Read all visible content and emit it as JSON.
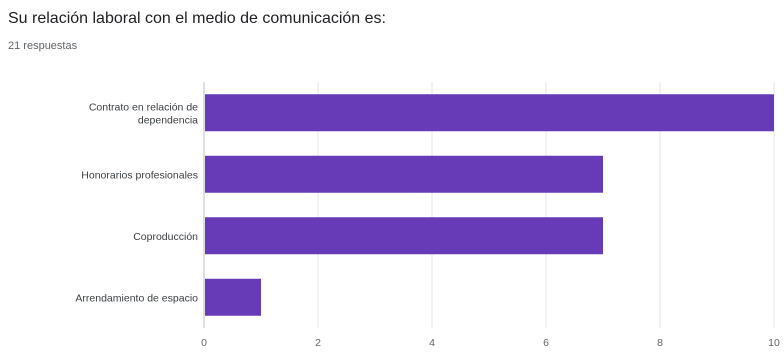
{
  "title": "Su relación laboral con el medio de comunicación es:",
  "subtitle": "21 respuestas",
  "colors": {
    "bar": "#673ab7",
    "grid": "#e6e6e6",
    "axis": "#bdbdbd"
  },
  "chart_data": {
    "type": "bar",
    "orientation": "horizontal",
    "categories": [
      [
        "Contrato en relación de",
        "dependencia"
      ],
      [
        "Honorarios profesionales"
      ],
      [
        "Coproducción"
      ],
      [
        "Arrendamiento de espacio"
      ]
    ],
    "values": [
      10,
      7,
      7,
      1
    ],
    "xlim": [
      0,
      10
    ],
    "xticks": [
      0,
      2,
      4,
      6,
      8,
      10
    ],
    "grid": true,
    "legend": "none"
  }
}
